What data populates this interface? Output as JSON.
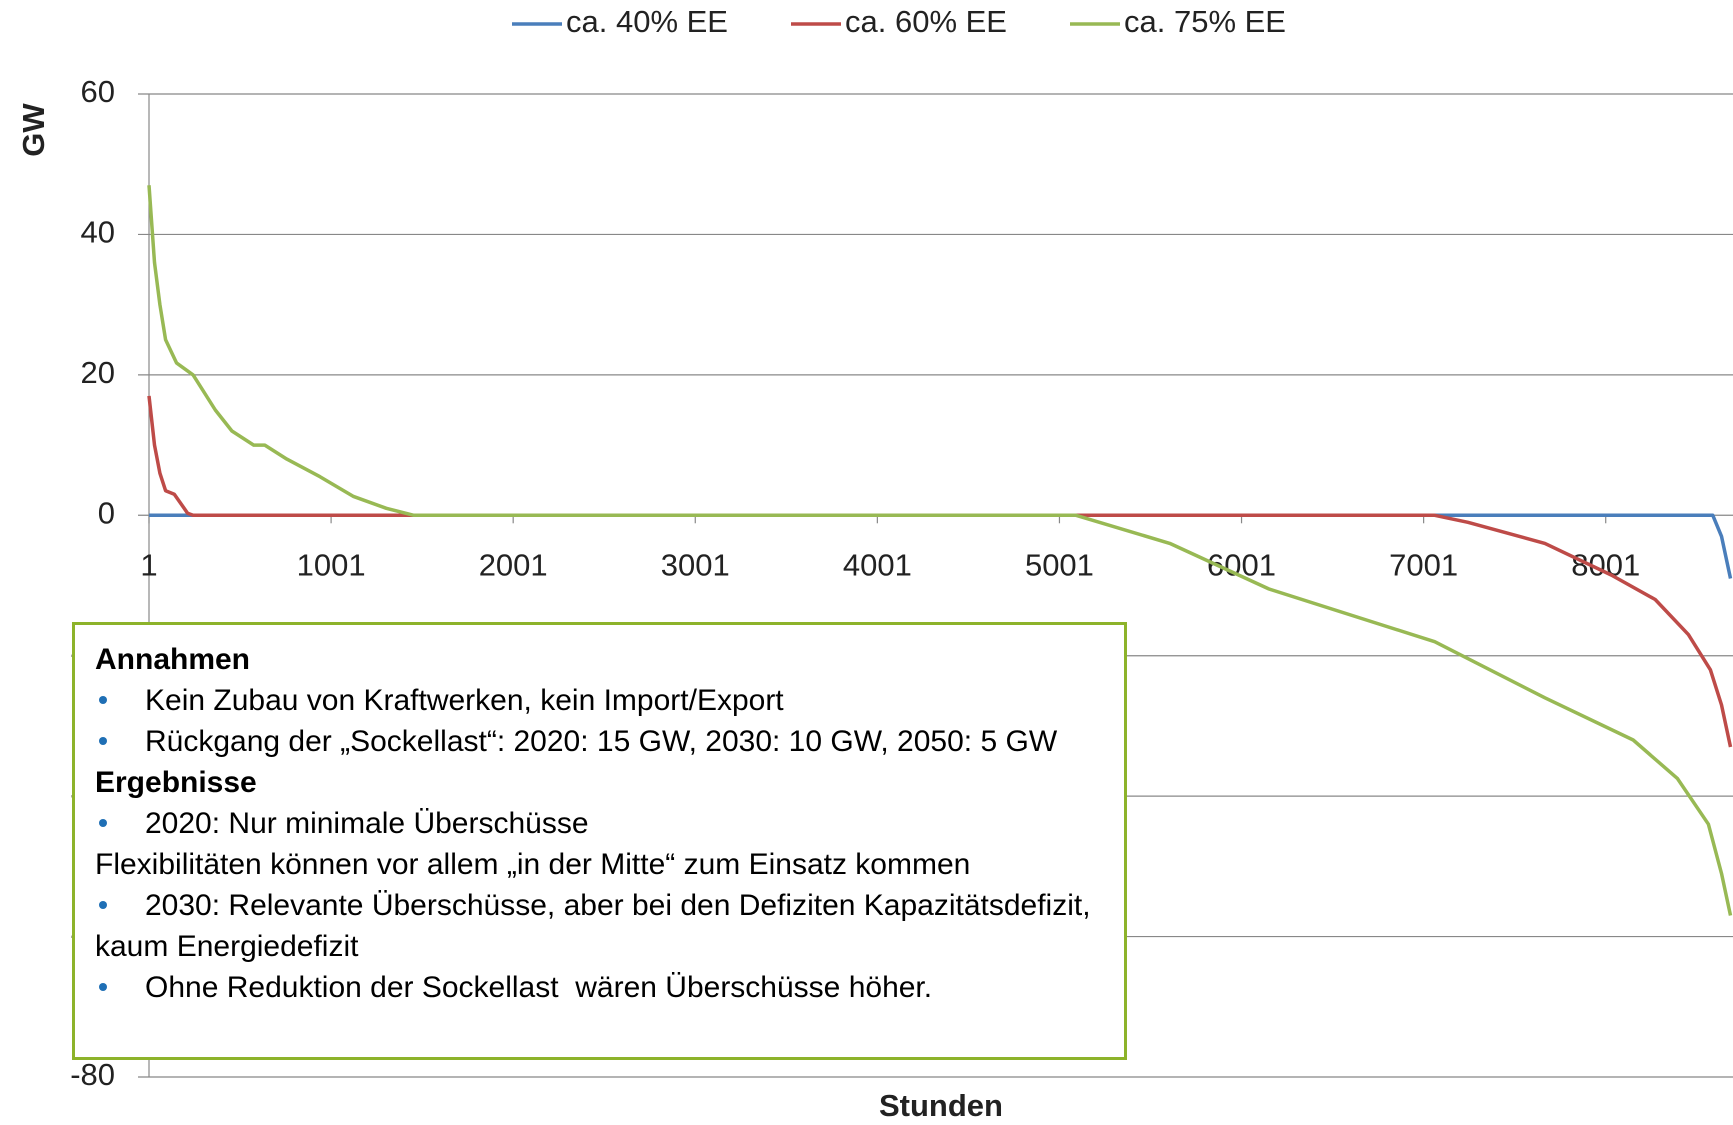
{
  "chart_data": {
    "type": "line",
    "xlabel": "Stunden",
    "ylabel": "GW",
    "xlim": [
      1,
      8700
    ],
    "xticks": [
      1,
      1001,
      2001,
      3001,
      4001,
      5001,
      6001,
      7001,
      8001
    ],
    "ylim": [
      -80,
      60
    ],
    "yticks": [
      60,
      40,
      20,
      0,
      -20,
      -40,
      -60,
      -80
    ],
    "grid": true,
    "legend": "top",
    "series": [
      {
        "name": "ca. 40% EE",
        "color": "#4a7ebb",
        "x": [
          1,
          8589,
          8637,
          8686
        ],
        "values": [
          0,
          0,
          -3,
          -9
        ]
      },
      {
        "name": "ca. 60% EE",
        "color": "#be4b48",
        "x": [
          1,
          31,
          61,
          92,
          140,
          213,
          243,
          7062,
          7244,
          7667,
          8031,
          8273,
          8455,
          8576,
          8637,
          8686
        ],
        "values": [
          17,
          10,
          6,
          3.5,
          3,
          0.3,
          0,
          0,
          -1,
          -4,
          -8.5,
          -12,
          -17,
          -22,
          -27,
          -33
        ]
      },
      {
        "name": "ca. 75% EE",
        "color": "#98b954",
        "x": [
          1,
          31,
          61,
          92,
          152,
          243,
          365,
          456,
          576,
          637,
          758,
          940,
          1122,
          1304,
          1455,
          5092,
          5607,
          6152,
          7062,
          7667,
          8152,
          8395,
          8565,
          8637,
          8686
        ],
        "values": [
          47,
          36,
          30,
          25,
          21.7,
          20,
          15,
          12,
          10,
          10,
          8,
          5.5,
          2.7,
          1,
          0,
          0,
          -4,
          -10.5,
          -18,
          -26,
          -32,
          -37.5,
          -44,
          -51,
          -57
        ]
      }
    ]
  },
  "box": {
    "sections": [
      {
        "heading": "Annahmen",
        "lines": [
          {
            "bullet": true,
            "text": "Kein Zubau von Kraftwerken, kein Import/Export"
          },
          {
            "bullet": true,
            "text": "Rückgang der „Sockellast“: 2020: 15 GW, 2030: 10 GW, 2050: 5 GW"
          }
        ]
      },
      {
        "heading": "Ergebnisse",
        "lines": [
          {
            "bullet": true,
            "text": "2020: Nur minimale Überschüsse"
          },
          {
            "bullet": false,
            "text": "Flexibilitäten können vor allem „in der Mitte“ zum Einsatz kommen"
          },
          {
            "bullet": true,
            "text": "2030: Relevante Überschüsse, aber bei den Defiziten Kapazitätsdefizit, kaum Energiedefizit"
          },
          {
            "bullet": true,
            "text": "Ohne Reduktion der Sockellast  wären Überschüsse höher."
          }
        ]
      }
    ]
  }
}
